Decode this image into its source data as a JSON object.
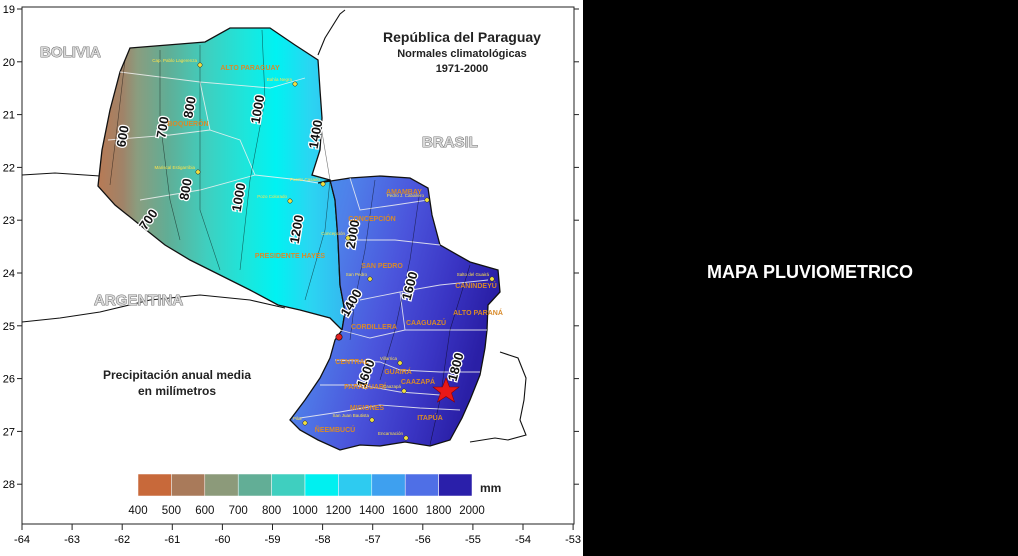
{
  "map": {
    "title_lines": [
      "República del Paraguay",
      "Normales climatológicas",
      "1971-2000"
    ],
    "caption_lines": [
      "Precipitación anual media",
      "en milímetros"
    ],
    "countries": [
      "BOLIVIA",
      "BRASIL",
      "ARGENTINA"
    ],
    "lon_ticks": [
      "-64",
      "-63",
      "-62",
      "-61",
      "-60",
      "-59",
      "-58",
      "-57",
      "-56",
      "-55",
      "-54",
      "-53"
    ],
    "lat_ticks": [
      "19",
      "20",
      "21",
      "22",
      "23",
      "24",
      "25",
      "26",
      "27",
      "28"
    ],
    "isohyets": [
      "600",
      "700",
      "800",
      "800",
      "700",
      "1000",
      "1000",
      "1200",
      "1400",
      "1400",
      "1600",
      "1600",
      "1800",
      "2000"
    ],
    "departments": [
      "ALTO PARAGUAY",
      "BOQUERÓN",
      "PRESIDENTE HAYES",
      "CONCEPCIÓN",
      "AMAMBAY",
      "SAN PEDRO",
      "CANINDEYÚ",
      "CORDILLERA",
      "CAAGUAZÚ",
      "ALTO PARANÁ",
      "CENTRAL",
      "PARAGUARÍ",
      "GUAIRÁ",
      "CAAZAPÁ",
      "MISIONES",
      "ÑEEMBUCÚ",
      "ITAPÚA"
    ],
    "cities": [
      "Bahía Negra",
      "Cap. Pablo Lagerenza",
      "Puerto Casado",
      "Mariscal Estigarribia",
      "Pozo Colorado",
      "Pedro J. Caballero",
      "Concepción",
      "San Pedro",
      "Salto del Guairá",
      "Villarrica",
      "Caazapá",
      "Pilar",
      "Encarnación",
      "San Juan Bautista"
    ],
    "legend": {
      "unit": "mm",
      "labels": [
        "400",
        "500",
        "600",
        "700",
        "800",
        "1000",
        "1200",
        "1400",
        "1600",
        "1800",
        "2000"
      ],
      "colors": [
        "#c8693a",
        "#a97a5a",
        "#8c9a7a",
        "#62ae96",
        "#3fcfbf",
        "#00f0f0",
        "#2ecbf0",
        "#3ea0ef",
        "#4f6fe6",
        "#4a45d6",
        "#2a1faa"
      ]
    }
  },
  "side_title": "MAPA PLUVIOMETRICO"
}
